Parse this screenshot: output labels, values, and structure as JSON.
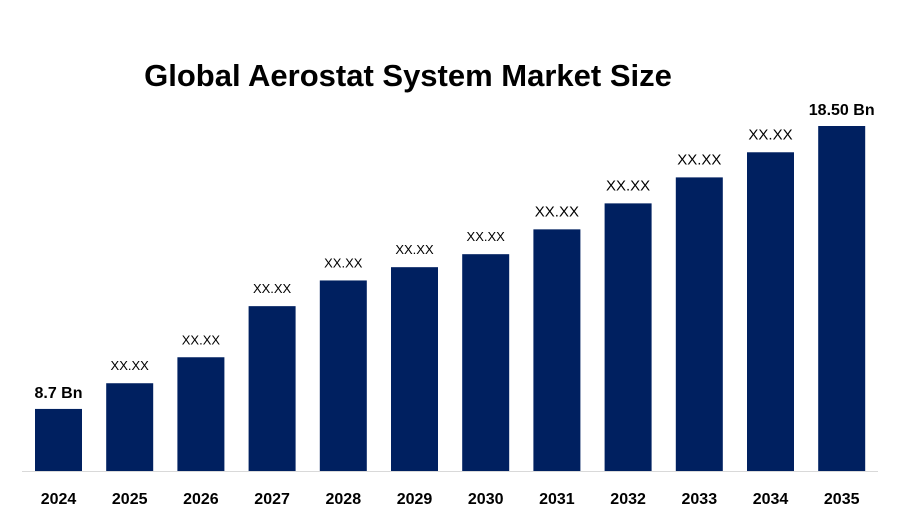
{
  "chart_data": {
    "type": "bar",
    "title": "Global Aerostat System Market Size",
    "xlabel": "",
    "ylabel": "",
    "unit": "Bn",
    "categories": [
      "2024",
      "2025",
      "2026",
      "2027",
      "2028",
      "2029",
      "2030",
      "2031",
      "2032",
      "2033",
      "2034",
      "2035"
    ],
    "values": [
      8.7,
      9.59,
      10.49,
      12.26,
      13.15,
      13.61,
      14.06,
      14.92,
      15.82,
      16.72,
      17.59,
      18.5
    ],
    "data_labels": [
      "8.7 Bn",
      "XX.XX",
      "XX.XX",
      "XX.XX",
      "XX.XX",
      "XX.XX",
      "XX.XX",
      "XX.XX",
      "XX.XX",
      "XX.XX",
      "XX.XX",
      "18.50 Bn"
    ],
    "ylim": [
      6.55,
      19
    ],
    "grid": false,
    "legend": "none",
    "colors": {
      "bar": "#002060",
      "baseline": "#d9d9d9",
      "text": "#000000"
    }
  }
}
